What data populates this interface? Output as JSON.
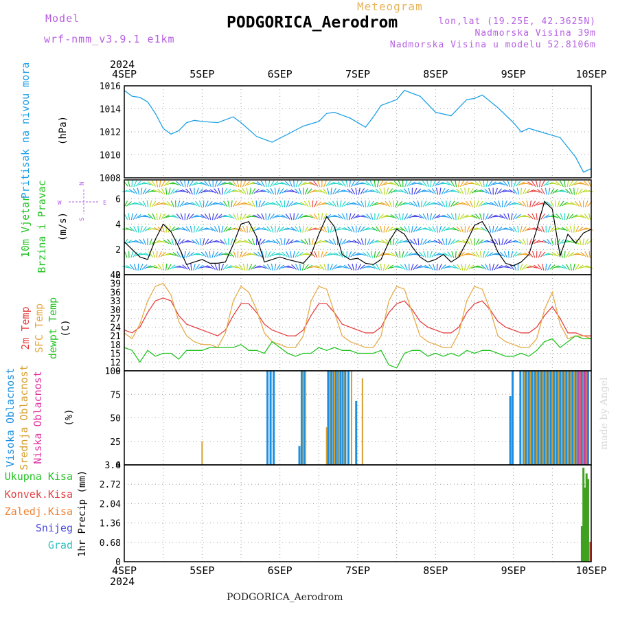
{
  "header": {
    "model_label": "Model",
    "model_name": "wrf-nmm_v3.9.1  e1km",
    "meteogram_label": "Meteogram",
    "station_title": "PODGORICA_Aerodrom",
    "lonlat": "lon,lat (19.25E, 42.3625N)",
    "elevation": "Nadmorska Visina 39m",
    "model_elevation": "Nadmorska Visina u modelu 52.8106m"
  },
  "signature": "made by Angel",
  "footer": "PODGORICA_Aerodrom",
  "year_label": "2024",
  "colors": {
    "pressure": "#1ea0e6",
    "wind_speed": "#000000",
    "temp2m": "#e64040",
    "sfc_temp": "#e6aa46",
    "dewpoint": "#22c322",
    "high_cloud": "#1e90e0",
    "mid_cloud": "#d6a030",
    "low_cloud": "#e030a0",
    "total_precip": "#40a020",
    "conv_precip": "#e64040"
  },
  "chart_data": [
    {
      "type": "line",
      "panel": "pressure",
      "y_labels": [
        "Pritisak na nivou mora",
        "(hPa)"
      ],
      "ylim": [
        1008,
        1016
      ],
      "yticks": [
        1008,
        1010,
        1012,
        1014,
        1016
      ],
      "x_day_labels": [
        "4SEP",
        "5SEP",
        "6SEP",
        "7SEP",
        "8SEP",
        "9SEP",
        "10SEP"
      ],
      "series": [
        {
          "values_x_days": [
            0,
            0.1,
            0.2,
            0.3,
            0.4,
            0.5,
            0.6,
            0.7,
            0.8,
            0.9,
            1.0,
            1.2,
            1.4,
            1.5,
            1.7,
            1.9,
            2.1,
            2.3,
            2.5,
            2.6,
            2.7,
            2.9,
            3.1,
            3.2,
            3.3,
            3.5,
            3.6,
            3.8,
            4.0,
            4.2,
            4.4,
            4.5,
            4.6,
            4.8,
            5.0,
            5.1,
            5.2,
            5.4,
            5.6,
            5.8,
            5.9,
            6.0
          ],
          "values": [
            1015.6,
            1015.1,
            1015.0,
            1014.6,
            1013.6,
            1012.3,
            1011.8,
            1012.1,
            1012.8,
            1013.0,
            1012.9,
            1012.8,
            1013.3,
            1012.8,
            1011.6,
            1011.1,
            1011.8,
            1012.5,
            1012.9,
            1013.6,
            1013.7,
            1013.2,
            1012.4,
            1013.3,
            1014.3,
            1014.8,
            1015.6,
            1015.1,
            1013.7,
            1013.4,
            1014.8,
            1014.9,
            1015.2,
            1014.1,
            1012.8,
            1012.0,
            1012.3,
            1011.9,
            1011.5,
            1009.8,
            1008.5,
            1008.8
          ]
        }
      ]
    },
    {
      "type": "line",
      "panel": "wind",
      "y_labels": [
        "10m Vjetar",
        "Brzina i Pravac",
        "(m/s)"
      ],
      "ylim": [
        0,
        7.5
      ],
      "yticks": [
        0,
        2,
        4,
        6
      ],
      "compass": "N S W E",
      "series": [
        {
          "name": "wind_speed",
          "values_x_days": [
            0,
            0.2,
            0.3,
            0.4,
            0.5,
            0.6,
            0.7,
            0.8,
            0.9,
            1.0,
            1.1,
            1.2,
            1.3,
            1.4,
            1.5,
            1.6,
            1.7,
            1.8,
            1.9,
            2.0,
            2.1,
            2.3,
            2.4,
            2.5,
            2.6,
            2.7,
            2.8,
            2.9,
            3.0,
            3.1,
            3.2,
            3.3,
            3.4,
            3.5,
            3.6,
            3.7,
            3.8,
            3.9,
            4.0,
            4.1,
            4.2,
            4.3,
            4.4,
            4.5,
            4.6,
            4.7,
            4.8,
            4.9,
            5.0,
            5.1,
            5.2,
            5.3,
            5.4,
            5.5,
            5.6,
            5.7,
            5.8,
            5.9,
            6.0
          ],
          "values": [
            2.6,
            1.4,
            1.2,
            2.8,
            4.0,
            3.4,
            2.2,
            0.8,
            1.0,
            1.2,
            0.9,
            0.9,
            1.0,
            2.4,
            4.0,
            4.2,
            3.0,
            1.0,
            1.2,
            1.4,
            1.2,
            0.9,
            1.6,
            3.2,
            4.6,
            3.8,
            1.6,
            1.2,
            1.3,
            0.9,
            0.8,
            1.2,
            2.6,
            3.6,
            3.2,
            2.2,
            1.4,
            1.0,
            1.2,
            1.6,
            1.0,
            1.4,
            2.6,
            3.9,
            4.2,
            3.2,
            1.8,
            0.9,
            0.7,
            1.0,
            1.6,
            3.6,
            5.8,
            5.2,
            1.5,
            3.2,
            2.5,
            3.3,
            3.6
          ]
        }
      ]
    },
    {
      "type": "line",
      "panel": "temperature",
      "y_labels": [
        "2m Temp",
        "SFC Temp",
        "dewpt Temp",
        "(C)"
      ],
      "ylim": [
        9,
        42
      ],
      "yticks": [
        9,
        12,
        15,
        18,
        21,
        24,
        27,
        30,
        33,
        36,
        39,
        42
      ],
      "x_days": [
        0,
        0.1,
        0.2,
        0.3,
        0.4,
        0.5,
        0.6,
        0.7,
        0.8,
        0.9,
        1.0,
        1.1,
        1.2,
        1.3,
        1.4,
        1.5,
        1.6,
        1.7,
        1.8,
        1.9,
        2.0,
        2.1,
        2.2,
        2.3,
        2.4,
        2.5,
        2.6,
        2.7,
        2.8,
        2.9,
        3.0,
        3.1,
        3.2,
        3.3,
        3.4,
        3.5,
        3.6,
        3.7,
        3.8,
        3.9,
        4.0,
        4.1,
        4.2,
        4.3,
        4.4,
        4.5,
        4.6,
        4.7,
        4.8,
        4.9,
        5.0,
        5.1,
        5.2,
        5.3,
        5.4,
        5.5,
        5.6,
        5.7,
        5.8,
        5.9,
        6.0
      ],
      "series": [
        {
          "name": "2m Temp",
          "values": [
            23,
            22,
            24,
            29,
            33,
            34,
            33,
            28,
            25,
            24,
            23,
            22,
            21,
            23,
            28,
            32,
            32,
            29,
            25,
            23,
            22,
            21,
            21,
            23,
            28,
            32,
            32,
            29,
            25,
            24,
            23,
            22,
            22,
            24,
            29,
            32,
            33,
            30,
            26,
            24,
            23,
            22,
            22,
            24,
            29,
            32,
            33,
            30,
            26,
            24,
            23,
            22,
            22,
            24,
            28,
            31,
            27,
            22,
            22,
            21,
            21
          ]
        },
        {
          "name": "SFC Temp",
          "values": [
            22,
            20,
            25,
            33,
            38,
            39,
            35,
            26,
            21,
            19,
            18,
            18,
            17,
            22,
            33,
            38,
            36,
            30,
            22,
            19,
            18,
            17,
            17,
            21,
            33,
            38,
            37,
            29,
            21,
            19,
            18,
            17,
            17,
            21,
            33,
            38,
            37,
            29,
            21,
            19,
            18,
            17,
            17,
            22,
            33,
            38,
            37,
            30,
            21,
            19,
            18,
            17,
            17,
            20,
            30,
            36,
            25,
            20,
            21,
            21,
            20
          ]
        },
        {
          "name": "dewpt Temp",
          "values": [
            17,
            16,
            12,
            16,
            14,
            15,
            15,
            13,
            16,
            16,
            16,
            17,
            17,
            17,
            17,
            18,
            16,
            16,
            15,
            19,
            17,
            15,
            14,
            15,
            15,
            17,
            16,
            17,
            16,
            16,
            15,
            15,
            15,
            16,
            11,
            10,
            15,
            16,
            16,
            14,
            15,
            14,
            15,
            14,
            16,
            15,
            16,
            16,
            15,
            14,
            14,
            15,
            14,
            16,
            19,
            20,
            17,
            19,
            21,
            20,
            20
          ]
        }
      ]
    },
    {
      "type": "bar",
      "panel": "cloud_cover",
      "y_labels": [
        "Visoka Oblacnost",
        "Srednja Oblacnost",
        "Niska Oblacnost",
        "(%)"
      ],
      "ylim": [
        0,
        100
      ],
      "yticks": [
        0,
        25,
        50,
        75,
        100
      ],
      "series": [
        {
          "name": "Visoka Oblacnost",
          "x_days": [
            1.84,
            1.88,
            1.92,
            2.25,
            2.28,
            2.31,
            2.62,
            2.66,
            2.69,
            2.72,
            2.75,
            2.78,
            2.81,
            2.84,
            2.88,
            2.98,
            4.96,
            4.99,
            5.09,
            5.13,
            5.16,
            5.2,
            5.24,
            5.28,
            5.32,
            5.36,
            5.4,
            5.44,
            5.48,
            5.52,
            5.56,
            5.6,
            5.64,
            5.68,
            5.72,
            5.76,
            5.8,
            5.84,
            5.88,
            5.92,
            5.96
          ],
          "values": [
            100,
            100,
            100,
            20,
            100,
            100,
            100,
            100,
            100,
            100,
            100,
            100,
            100,
            100,
            100,
            68,
            73,
            100,
            100,
            100,
            100,
            100,
            100,
            100,
            100,
            100,
            100,
            100,
            100,
            100,
            100,
            100,
            100,
            100,
            100,
            100,
            100,
            100,
            100,
            100,
            100
          ]
        },
        {
          "name": "Srednja Oblacnost",
          "x_days": [
            1.0,
            2.3,
            2.33,
            2.6,
            2.64,
            2.7,
            2.76,
            2.82,
            2.92,
            3.06,
            5.14,
            5.18,
            5.22,
            5.26,
            5.3,
            5.34,
            5.38,
            5.42,
            5.46,
            5.5,
            5.54,
            5.58,
            5.62,
            5.66,
            5.7,
            5.74,
            5.78,
            5.82,
            5.86,
            5.9,
            5.94
          ],
          "values": [
            25,
            100,
            100,
            40,
            100,
            100,
            100,
            100,
            100,
            92,
            100,
            100,
            100,
            100,
            100,
            100,
            100,
            100,
            100,
            100,
            100,
            100,
            100,
            100,
            100,
            100,
            100,
            100,
            100,
            100,
            100
          ]
        },
        {
          "name": "Niska Oblacnost",
          "x_days": [
            5.83,
            5.87,
            5.91,
            5.95
          ],
          "values": [
            100,
            100,
            100,
            100
          ]
        }
      ]
    },
    {
      "type": "bar",
      "panel": "precipitation",
      "y_labels": [
        "1hr Precip",
        "(mm)"
      ],
      "ylim": [
        0,
        3.4
      ],
      "yticks": [
        0,
        0.68,
        1.36,
        2.04,
        2.72,
        3.4
      ],
      "x_day_labels": [
        "4SEP",
        "5SEP",
        "6SEP",
        "7SEP",
        "8SEP",
        "9SEP",
        "10SEP"
      ],
      "legend": [
        "Ukupna Kisa",
        "Konvek.Kisa",
        "Zaledj.Kisa",
        "Snijeg",
        "Grad"
      ],
      "series": [
        {
          "name": "Ukupna Kisa",
          "x_days": [
            5.88,
            5.9,
            5.92,
            5.94,
            5.96
          ],
          "values": [
            1.25,
            3.3,
            2.6,
            3.1,
            2.9
          ]
        },
        {
          "name": "Konvek.Kisa",
          "x_days": [
            5.99
          ],
          "values": [
            0.7
          ]
        }
      ]
    }
  ]
}
